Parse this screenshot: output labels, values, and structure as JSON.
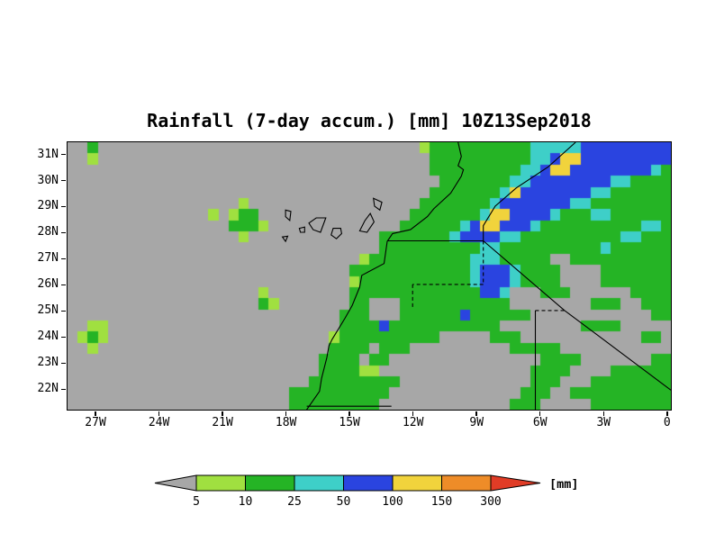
{
  "title": "Rainfall (7-day accum.) [mm] 10Z13Sep2018",
  "units_label": "[mm]",
  "chart_data": {
    "type": "heatmap",
    "title": "Rainfall (7-day accum.) [mm] 10Z13Sep2018",
    "valid_time": "10Z13Sep2018",
    "accumulation": "7-day",
    "units": "mm",
    "x_axis": {
      "range": [
        -28.3,
        0.2
      ],
      "ticks": [
        {
          "label": "27W",
          "lon": -27
        },
        {
          "label": "24W",
          "lon": -24
        },
        {
          "label": "21W",
          "lon": -21
        },
        {
          "label": "18W",
          "lon": -18
        },
        {
          "label": "15W",
          "lon": -15
        },
        {
          "label": "12W",
          "lon": -12
        },
        {
          "label": "9W",
          "lon": -9
        },
        {
          "label": "6W",
          "lon": -6
        },
        {
          "label": "3W",
          "lon": -3
        },
        {
          "label": "0",
          "lon": 0
        }
      ]
    },
    "y_axis": {
      "range": [
        21.2,
        31.45
      ],
      "ticks": [
        {
          "label": "31N",
          "lat": 31
        },
        {
          "label": "30N",
          "lat": 30
        },
        {
          "label": "29N",
          "lat": 29
        },
        {
          "label": "28N",
          "lat": 28
        },
        {
          "label": "27N",
          "lat": 27
        },
        {
          "label": "26N",
          "lat": 26
        },
        {
          "label": "25N",
          "lat": 25
        },
        {
          "label": "24N",
          "lat": 24
        },
        {
          "label": "23N",
          "lat": 23
        },
        {
          "label": "22N",
          "lat": 22
        }
      ]
    },
    "colorbar": {
      "levels": [
        5,
        10,
        25,
        50,
        100,
        150,
        300
      ],
      "tick_labels": [
        "5",
        "10",
        "25",
        "50",
        "100",
        "150",
        "300"
      ],
      "colors": [
        "#a7a7a7",
        "#a0e040",
        "#25b425",
        "#3ecfc8",
        "#2a44e0",
        "#f1d33c",
        "#ee8c28",
        "#e03c26"
      ],
      "cell_encoding": {
        "0": "<5",
        "1": "5-10",
        "2": "10-25",
        "3": "25-50",
        "4": "50-100",
        "5": "100-150",
        "6": "150-300",
        "7": ">300"
      }
    },
    "grid": {
      "ncols": 60,
      "nrows": 24,
      "rows": [
        "002000000000000000000000000000000001222222222233333444444444",
        "001000000000000000000000000000000000222222222233455444444444",
        "000000000000000000000000000000000000222222222334554444444432",
        "000000000000000000000000000000000000022222223344444444332222",
        "000000000000000000000000000000000000222222235444444433222222",
        "000000000000000001000000000000000002222222344444443322222222",
        "000000000000001012200000000000000022222223554444322233222222",
        "000000000000000022210000000000000222222345544432222222222332",
        "000000000000000001000000000000022222223444433222222222233222",
        "000000000000000000000000000000022222222223322222222223222222",
        "000000000000000000000000000001222222222233322222002222222222",
        "000000000000000000000000000022222222222234443222200002222222",
        "000000000000000000000000000012222222222234443222200002222222",
        "000000000000000000010000000022222222222224430002220000002222",
        "000000000000000000021000000022000222222222220000000022200222",
        "000000000000000000000000000222000222222422222200000000000022",
        "001100000000000000000000000222242222222222200000000222200000",
        "012100000000000000000000001222222222200000222000000000000220",
        "001000000000000000000000002222022200000000002222200000000000",
        "000000000000000000000000022220220000000000000002222000000022",
        "000000000000000000000000022221100000000000000022220000222222",
        "000000000000000000000000222222222000000000000022200022222222",
        "000000000000000000000022222222220000000000000222002222222222",
        "000000000000000000000022222222200000000000002220000022222222"
      ]
    },
    "map_lines": [
      {
        "name": "coastline",
        "style": "solid",
        "points": [
          [
            -9.85,
            31.45
          ],
          [
            -9.7,
            30.9
          ],
          [
            -9.85,
            30.55
          ],
          [
            -9.6,
            30.4
          ],
          [
            -9.7,
            30.15
          ],
          [
            -10.2,
            29.5
          ],
          [
            -11.0,
            28.9
          ],
          [
            -11.3,
            28.6
          ],
          [
            -12.1,
            28.1
          ],
          [
            -12.95,
            27.95
          ],
          [
            -13.2,
            27.65
          ],
          [
            -13.35,
            26.8
          ],
          [
            -14.4,
            26.35
          ],
          [
            -14.5,
            25.9
          ],
          [
            -14.85,
            25.2
          ],
          [
            -15.2,
            24.7
          ],
          [
            -15.8,
            23.9
          ],
          [
            -15.95,
            23.65
          ],
          [
            -16.05,
            23.2
          ],
          [
            -16.3,
            22.4
          ],
          [
            -16.4,
            21.9
          ],
          [
            -17.0,
            21.2
          ]
        ]
      },
      {
        "name": "border-morocco-algeria",
        "style": "solid",
        "points": [
          [
            -4.3,
            31.45
          ],
          [
            -5.6,
            30.5
          ],
          [
            -7.1,
            29.7
          ],
          [
            -8.1,
            29.0
          ],
          [
            -8.66,
            28.25
          ],
          [
            -8.66,
            27.67
          ]
        ]
      },
      {
        "name": "border-western-sahara-north",
        "style": "solid",
        "points": [
          [
            -13.17,
            27.67
          ],
          [
            -8.66,
            27.67
          ]
        ]
      },
      {
        "name": "border-western-sahara-east",
        "style": "dashed",
        "points": [
          [
            -8.66,
            27.67
          ],
          [
            -8.66,
            26.0
          ]
        ]
      },
      {
        "name": "border-western-sahara-south",
        "style": "dashed",
        "points": [
          [
            -8.66,
            26.0
          ],
          [
            -12.0,
            26.0
          ]
        ]
      },
      {
        "name": "border-western-sahara-west",
        "style": "dashed",
        "points": [
          [
            -12.0,
            26.0
          ],
          [
            -12.0,
            25.1
          ]
        ]
      },
      {
        "name": "border-algeria-mauritania",
        "style": "solid",
        "points": [
          [
            -8.66,
            27.67
          ],
          [
            -4.82,
            25.0
          ]
        ]
      },
      {
        "name": "border-algeria-mali",
        "style": "solid",
        "points": [
          [
            -4.82,
            25.0
          ],
          [
            0.2,
            21.95
          ]
        ]
      },
      {
        "name": "border-mauritania-mali-north",
        "style": "dashed",
        "points": [
          [
            -6.2,
            25.0
          ],
          [
            -4.82,
            25.0
          ]
        ]
      },
      {
        "name": "border-mauritania-mali",
        "style": "solid",
        "points": [
          [
            -6.2,
            25.0
          ],
          [
            -6.2,
            21.2
          ]
        ]
      },
      {
        "name": "border-western-sahara-mauritania",
        "style": "solid",
        "points": [
          [
            -17.0,
            21.33
          ],
          [
            -13.0,
            21.33
          ]
        ]
      }
    ],
    "islands": [
      {
        "name": "lanzarote",
        "points": [
          [
            -13.85,
            29.3
          ],
          [
            -13.45,
            29.15
          ],
          [
            -13.55,
            28.85
          ],
          [
            -13.8,
            29.0
          ]
        ]
      },
      {
        "name": "fuerteventura",
        "points": [
          [
            -14.0,
            28.72
          ],
          [
            -13.82,
            28.4
          ],
          [
            -14.15,
            28.0
          ],
          [
            -14.5,
            28.05
          ],
          [
            -14.25,
            28.45
          ]
        ]
      },
      {
        "name": "gran-canaria",
        "points": [
          [
            -15.4,
            28.15
          ],
          [
            -15.35,
            27.95
          ],
          [
            -15.6,
            27.75
          ],
          [
            -15.85,
            27.9
          ],
          [
            -15.75,
            28.15
          ]
        ]
      },
      {
        "name": "tenerife",
        "points": [
          [
            -16.9,
            28.35
          ],
          [
            -16.55,
            28.55
          ],
          [
            -16.1,
            28.55
          ],
          [
            -16.35,
            28.0
          ],
          [
            -16.7,
            28.1
          ]
        ]
      },
      {
        "name": "la-gomera",
        "points": [
          [
            -17.35,
            28.15
          ],
          [
            -17.1,
            28.2
          ],
          [
            -17.1,
            28.0
          ],
          [
            -17.3,
            28.0
          ]
        ]
      },
      {
        "name": "la-palma",
        "points": [
          [
            -18.0,
            28.85
          ],
          [
            -17.75,
            28.8
          ],
          [
            -17.8,
            28.45
          ],
          [
            -18.0,
            28.6
          ]
        ]
      },
      {
        "name": "el-hierro",
        "points": [
          [
            -18.15,
            27.82
          ],
          [
            -17.9,
            27.85
          ],
          [
            -18.0,
            27.65
          ]
        ]
      }
    ]
  }
}
